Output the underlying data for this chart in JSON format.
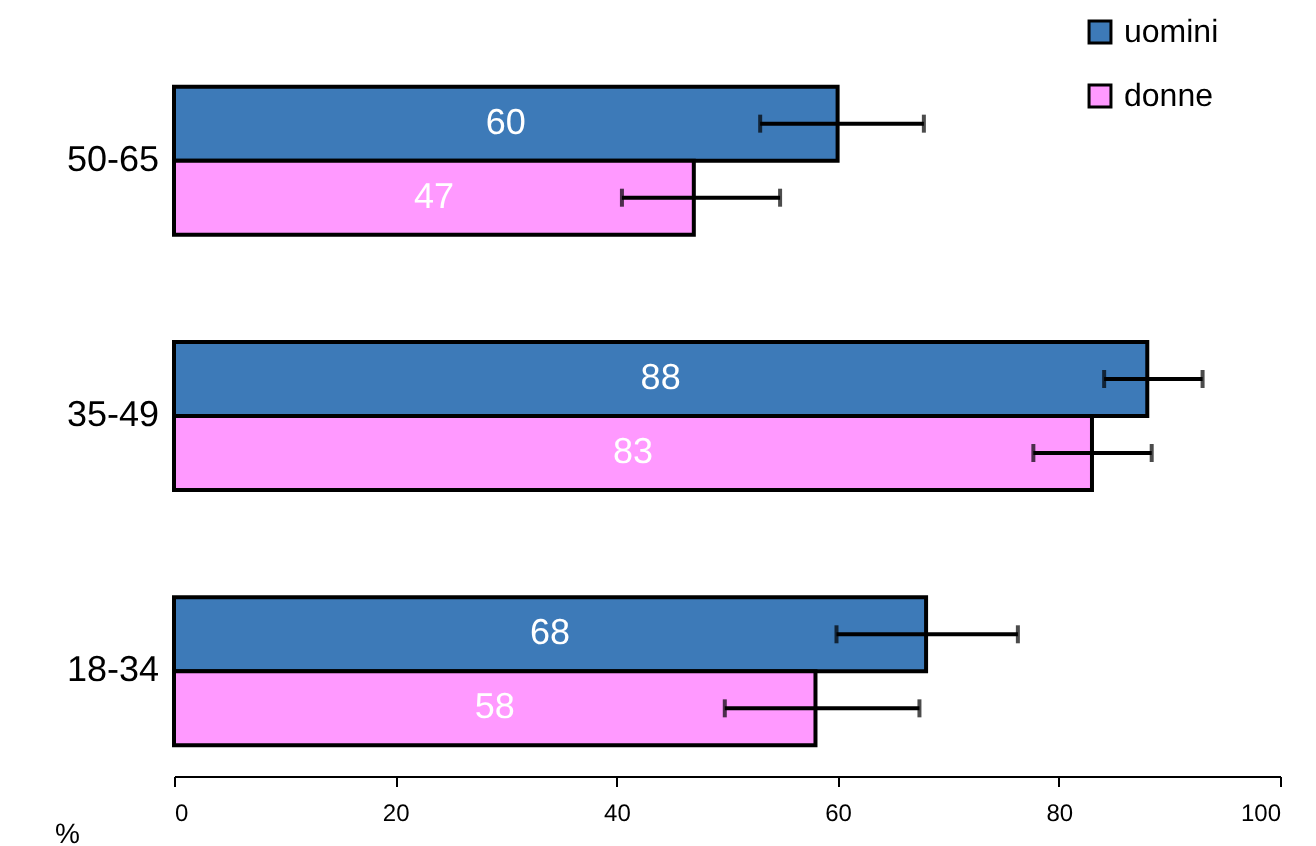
{
  "chart_data": {
    "type": "bar",
    "orientation": "horizontal",
    "categories": [
      "50-65",
      "35-49",
      "18-34"
    ],
    "series": [
      {
        "name": "uomini",
        "color": "#3d7ab8",
        "values": [
          60,
          88,
          68
        ],
        "errors": [
          [
            53,
            67.8
          ],
          [
            84.1,
            93
          ],
          [
            59.9,
            76.3
          ]
        ]
      },
      {
        "name": "donne",
        "color": "#ff99ff",
        "values": [
          47,
          83,
          58
        ],
        "errors": [
          [
            40.5,
            54.8
          ],
          [
            77.7,
            88.4
          ],
          [
            49.8,
            67.4
          ]
        ]
      }
    ],
    "xlabel": "%",
    "xlim": [
      0,
      100
    ],
    "xticks": [
      0,
      20,
      40,
      60,
      80,
      100
    ],
    "legend": "top right",
    "data_labels": true,
    "grid": false
  }
}
